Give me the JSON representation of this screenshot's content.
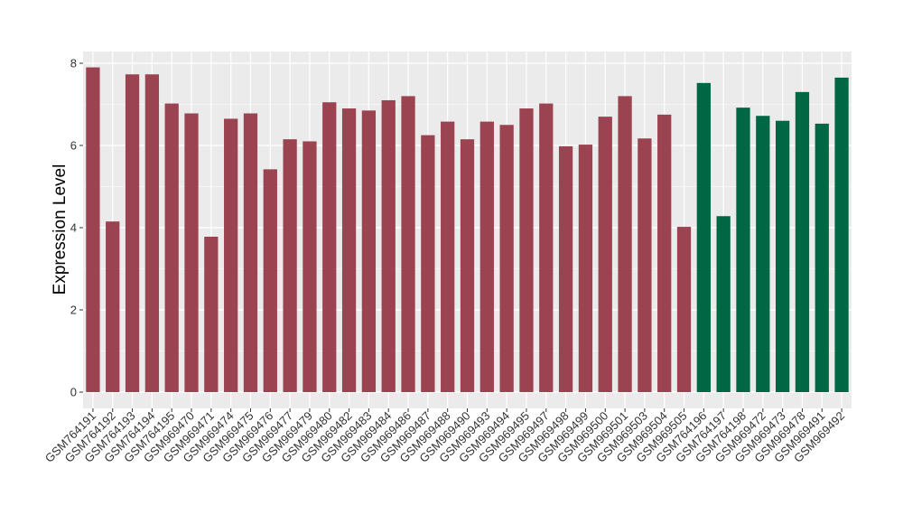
{
  "chart_data": {
    "type": "bar",
    "title": "",
    "xlabel": "",
    "ylabel": "Expression Level",
    "ylim": [
      0,
      8.15
    ],
    "yticks": [
      0,
      2,
      4,
      6,
      8
    ],
    "grid": true,
    "legend": "none",
    "colors": {
      "group_a": "#9b4350",
      "group_b": "#006745",
      "panel": "#ebebeb",
      "grid": "#ffffff"
    },
    "categories": [
      "GSM764191",
      "GSM764192",
      "GSM764193",
      "GSM764194",
      "GSM764195",
      "GSM969470",
      "GSM969471",
      "GSM969474",
      "GSM969475",
      "GSM969476",
      "GSM969477",
      "GSM969479",
      "GSM969480",
      "GSM969482",
      "GSM969483",
      "GSM969484",
      "GSM969486",
      "GSM969487",
      "GSM969488",
      "GSM969490",
      "GSM969493",
      "GSM969494",
      "GSM969495",
      "GSM969497",
      "GSM969498",
      "GSM969499",
      "GSM969500",
      "GSM969501",
      "GSM969503",
      "GSM969504",
      "GSM969505",
      "GSM764196",
      "GSM764197",
      "GSM764198",
      "GSM969472",
      "GSM969473",
      "GSM969478",
      "GSM969491",
      "GSM969492"
    ],
    "values": [
      7.9,
      4.15,
      7.73,
      7.73,
      7.02,
      6.78,
      3.78,
      6.65,
      6.78,
      5.42,
      6.15,
      6.1,
      7.05,
      6.9,
      6.85,
      7.1,
      7.2,
      6.25,
      6.58,
      6.15,
      6.58,
      6.5,
      6.9,
      7.02,
      5.98,
      6.02,
      6.7,
      7.2,
      6.17,
      6.75,
      4.02,
      7.52,
      4.28,
      6.92,
      6.72,
      6.6,
      7.3,
      6.53,
      7.65
    ],
    "groups": [
      "a",
      "a",
      "a",
      "a",
      "a",
      "a",
      "a",
      "a",
      "a",
      "a",
      "a",
      "a",
      "a",
      "a",
      "a",
      "a",
      "a",
      "a",
      "a",
      "a",
      "a",
      "a",
      "a",
      "a",
      "a",
      "a",
      "a",
      "a",
      "a",
      "a",
      "a",
      "b",
      "b",
      "b",
      "b",
      "b",
      "b",
      "b",
      "b"
    ]
  }
}
